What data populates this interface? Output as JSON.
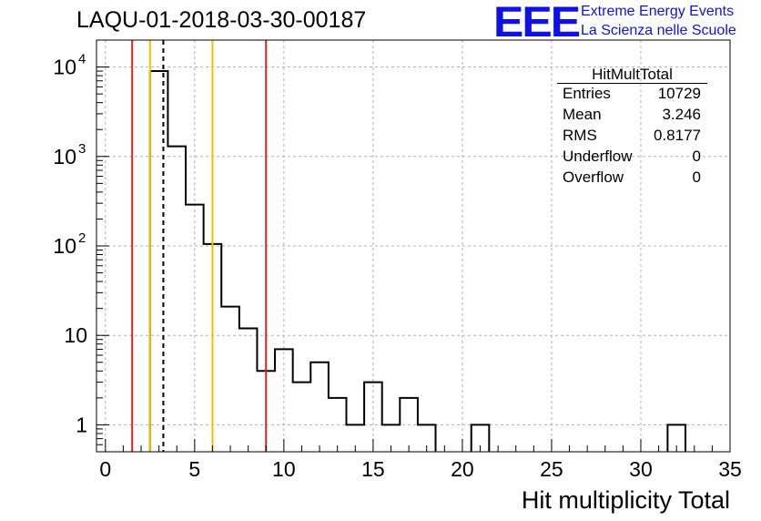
{
  "header": {
    "title": "LAQU-01-2018-03-30-00187",
    "logo_text": "EEE",
    "logo_line1": "Extreme Energy Events",
    "logo_line2": "La Scienza nelle Scuole"
  },
  "stats_box": {
    "title": "HitMultTotal",
    "rows": [
      {
        "label": "Entries",
        "value": "10729"
      },
      {
        "label": "Mean",
        "value": "3.246"
      },
      {
        "label": "RMS",
        "value": "0.8177"
      },
      {
        "label": "Underflow",
        "value": "0"
      },
      {
        "label": "Overflow",
        "value": "0"
      }
    ]
  },
  "colors": {
    "histogram": "#000000",
    "red_line": "#e0201a",
    "yellow_line": "#f2c000",
    "grid": "#b0b0b0"
  },
  "chart_data": {
    "type": "bar",
    "style": "step-histogram",
    "title": "LAQU-01-2018-03-30-00187",
    "xlabel": "Hit multiplicity Total",
    "ylabel": "",
    "xlim": [
      -0.5,
      35
    ],
    "ylim": [
      0.5,
      20000
    ],
    "yscale": "log",
    "grid": true,
    "bin_width": 1,
    "bins": [
      {
        "low": 2.5,
        "count": 9000
      },
      {
        "low": 3.5,
        "count": 1300
      },
      {
        "low": 4.5,
        "count": 290
      },
      {
        "low": 5.5,
        "count": 105
      },
      {
        "low": 6.5,
        "count": 21
      },
      {
        "low": 7.5,
        "count": 12
      },
      {
        "low": 8.5,
        "count": 4
      },
      {
        "low": 9.5,
        "count": 7
      },
      {
        "low": 10.5,
        "count": 3
      },
      {
        "low": 11.5,
        "count": 5
      },
      {
        "low": 12.5,
        "count": 2
      },
      {
        "low": 13.5,
        "count": 1
      },
      {
        "low": 14.5,
        "count": 3
      },
      {
        "low": 15.5,
        "count": 1
      },
      {
        "low": 16.5,
        "count": 2
      },
      {
        "low": 17.5,
        "count": 1
      },
      {
        "low": 20.5,
        "count": 1
      },
      {
        "low": 31.5,
        "count": 1
      }
    ],
    "x_ticks": [
      {
        "value": 0,
        "label": "0"
      },
      {
        "value": 5,
        "label": "5"
      },
      {
        "value": 10,
        "label": "10"
      },
      {
        "value": 15,
        "label": "15"
      },
      {
        "value": 20,
        "label": "20"
      },
      {
        "value": 25,
        "label": "25"
      },
      {
        "value": 30,
        "label": "30"
      },
      {
        "value": 35,
        "label": "35"
      }
    ],
    "y_ticks": [
      {
        "value": 1,
        "label": "1",
        "exp": ""
      },
      {
        "value": 10,
        "label": "10",
        "exp": ""
      },
      {
        "value": 100,
        "label": "10",
        "exp": "2"
      },
      {
        "value": 1000,
        "label": "10",
        "exp": "3"
      },
      {
        "value": 10000,
        "label": "10",
        "exp": "4"
      }
    ],
    "vertical_markers": [
      {
        "x": 1.5,
        "color": "red",
        "style": "solid"
      },
      {
        "x": 2.5,
        "color": "yellow",
        "style": "solid"
      },
      {
        "x": 3.246,
        "color": "black",
        "style": "dashed"
      },
      {
        "x": 6.0,
        "color": "yellow",
        "style": "solid"
      },
      {
        "x": 9.0,
        "color": "red",
        "style": "solid"
      }
    ]
  }
}
